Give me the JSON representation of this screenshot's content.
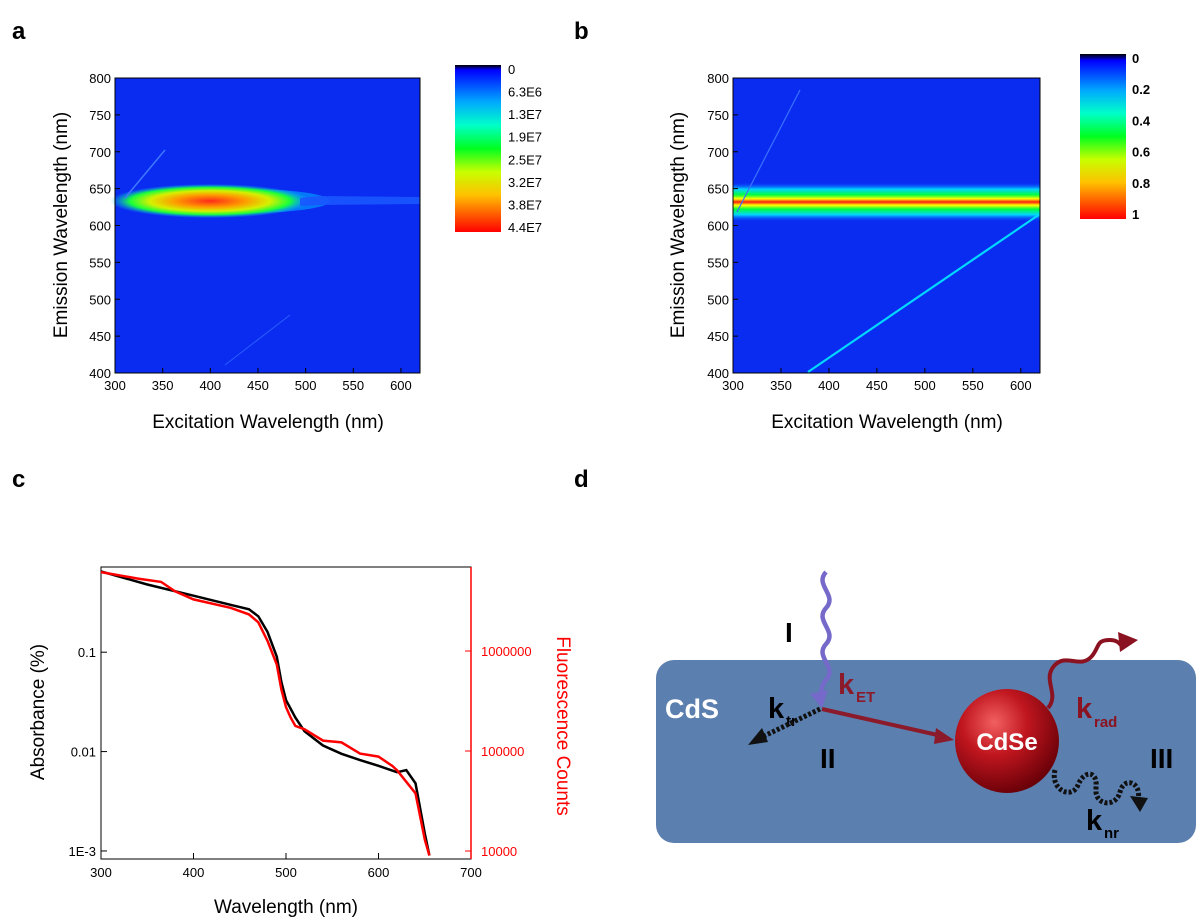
{
  "panels": {
    "a": "a",
    "b": "b",
    "c": "c",
    "d": "d"
  },
  "chart_data": [
    {
      "type": "heatmap",
      "panel": "a",
      "xlabel": "Excitation Wavelength (nm)",
      "ylabel": "Emission Wavelength (nm)",
      "xlim": [
        300,
        620
      ],
      "ylim": [
        400,
        800
      ],
      "xticks": [
        "300",
        "350",
        "400",
        "450",
        "500",
        "550",
        "600"
      ],
      "yticks": [
        "400",
        "450",
        "500",
        "550",
        "600",
        "650",
        "700",
        "750",
        "800"
      ],
      "colorbar_labels": [
        "0",
        "6.3E6",
        "1.3E7",
        "1.9E7",
        "2.5E7",
        "3.2E7",
        "3.8E7",
        "4.4E7"
      ],
      "emission_peak_nm": 637,
      "emission_peak_excitation_range_nm": [
        300,
        510
      ],
      "max_intensity_excitation_range_nm": [
        310,
        380
      ]
    },
    {
      "type": "heatmap",
      "panel": "b",
      "xlabel": "Excitation Wavelength (nm)",
      "ylabel": "Emission Wavelength (nm)",
      "xlim": [
        300,
        620
      ],
      "ylim": [
        400,
        800
      ],
      "xticks": [
        "300",
        "350",
        "400",
        "450",
        "500",
        "550",
        "600"
      ],
      "yticks": [
        "400",
        "450",
        "500",
        "550",
        "600",
        "650",
        "700",
        "750",
        "800"
      ],
      "colorbar_labels": [
        "0",
        "0.2",
        "0.4",
        "0.6",
        "0.8",
        "1"
      ],
      "emission_peak_nm": 637,
      "emission_peak_excitation_range_nm": [
        300,
        620
      ]
    },
    {
      "type": "line",
      "panel": "c",
      "xlabel": "Wavelength (nm)",
      "ylabel": "Absorbance (%)",
      "y2label": "Fluorescence Counts",
      "xlim": [
        300,
        700
      ],
      "ylog": true,
      "xticks": [
        "300",
        "400",
        "500",
        "600",
        "700"
      ],
      "yticks": [
        "1E-3",
        "0.01",
        "0.1"
      ],
      "y2ticks": [
        "10000",
        "100000",
        "1000000"
      ],
      "series": [
        {
          "color": "#000000",
          "x": [
            300,
            350,
            400,
            440,
            460,
            470,
            480,
            490,
            495,
            500,
            510,
            520,
            540,
            560,
            580,
            600,
            620,
            630,
            640,
            650,
            655
          ],
          "y": [
            0.65,
            0.48,
            0.37,
            0.3,
            0.27,
            0.23,
            0.16,
            0.09,
            0.05,
            0.033,
            0.022,
            0.016,
            0.0115,
            0.0095,
            0.0082,
            0.0072,
            0.0062,
            0.0065,
            0.0048,
            0.0015,
            0.0009
          ]
        },
        {
          "color": "#ff0000",
          "x": [
            300,
            340,
            365,
            380,
            400,
            440,
            460,
            470,
            480,
            490,
            495,
            500,
            505,
            510,
            520,
            540,
            560,
            580,
            600,
            615,
            620,
            630,
            640,
            650,
            655
          ],
          "y": [
            0.64,
            0.55,
            0.51,
            0.41,
            0.34,
            0.28,
            0.24,
            0.2,
            0.13,
            0.075,
            0.042,
            0.028,
            0.022,
            0.019,
            0.016,
            0.0135,
            0.0118,
            0.01,
            0.0085,
            0.0075,
            0.0062,
            0.0052,
            0.0038,
            0.0013,
            0.0009
          ]
        }
      ]
    }
  ],
  "schematic": {
    "cds_label": "CdS",
    "cdse_label": "CdSe",
    "step_1": "I",
    "step_2": "II",
    "step_3": "III",
    "k_tr": {
      "k": "k",
      "sub": "tr"
    },
    "k_et": {
      "k": "k",
      "sub": "ET"
    },
    "k_rad": {
      "k": "k",
      "sub": "rad"
    },
    "k_nr": {
      "k": "k",
      "sub": "nr"
    },
    "colors": {
      "rod": "#5b7fae",
      "sphere": "#c0161f",
      "excitation": "#7569c9",
      "emission": "#8b1220",
      "transfer": "#8b1a2a"
    }
  }
}
